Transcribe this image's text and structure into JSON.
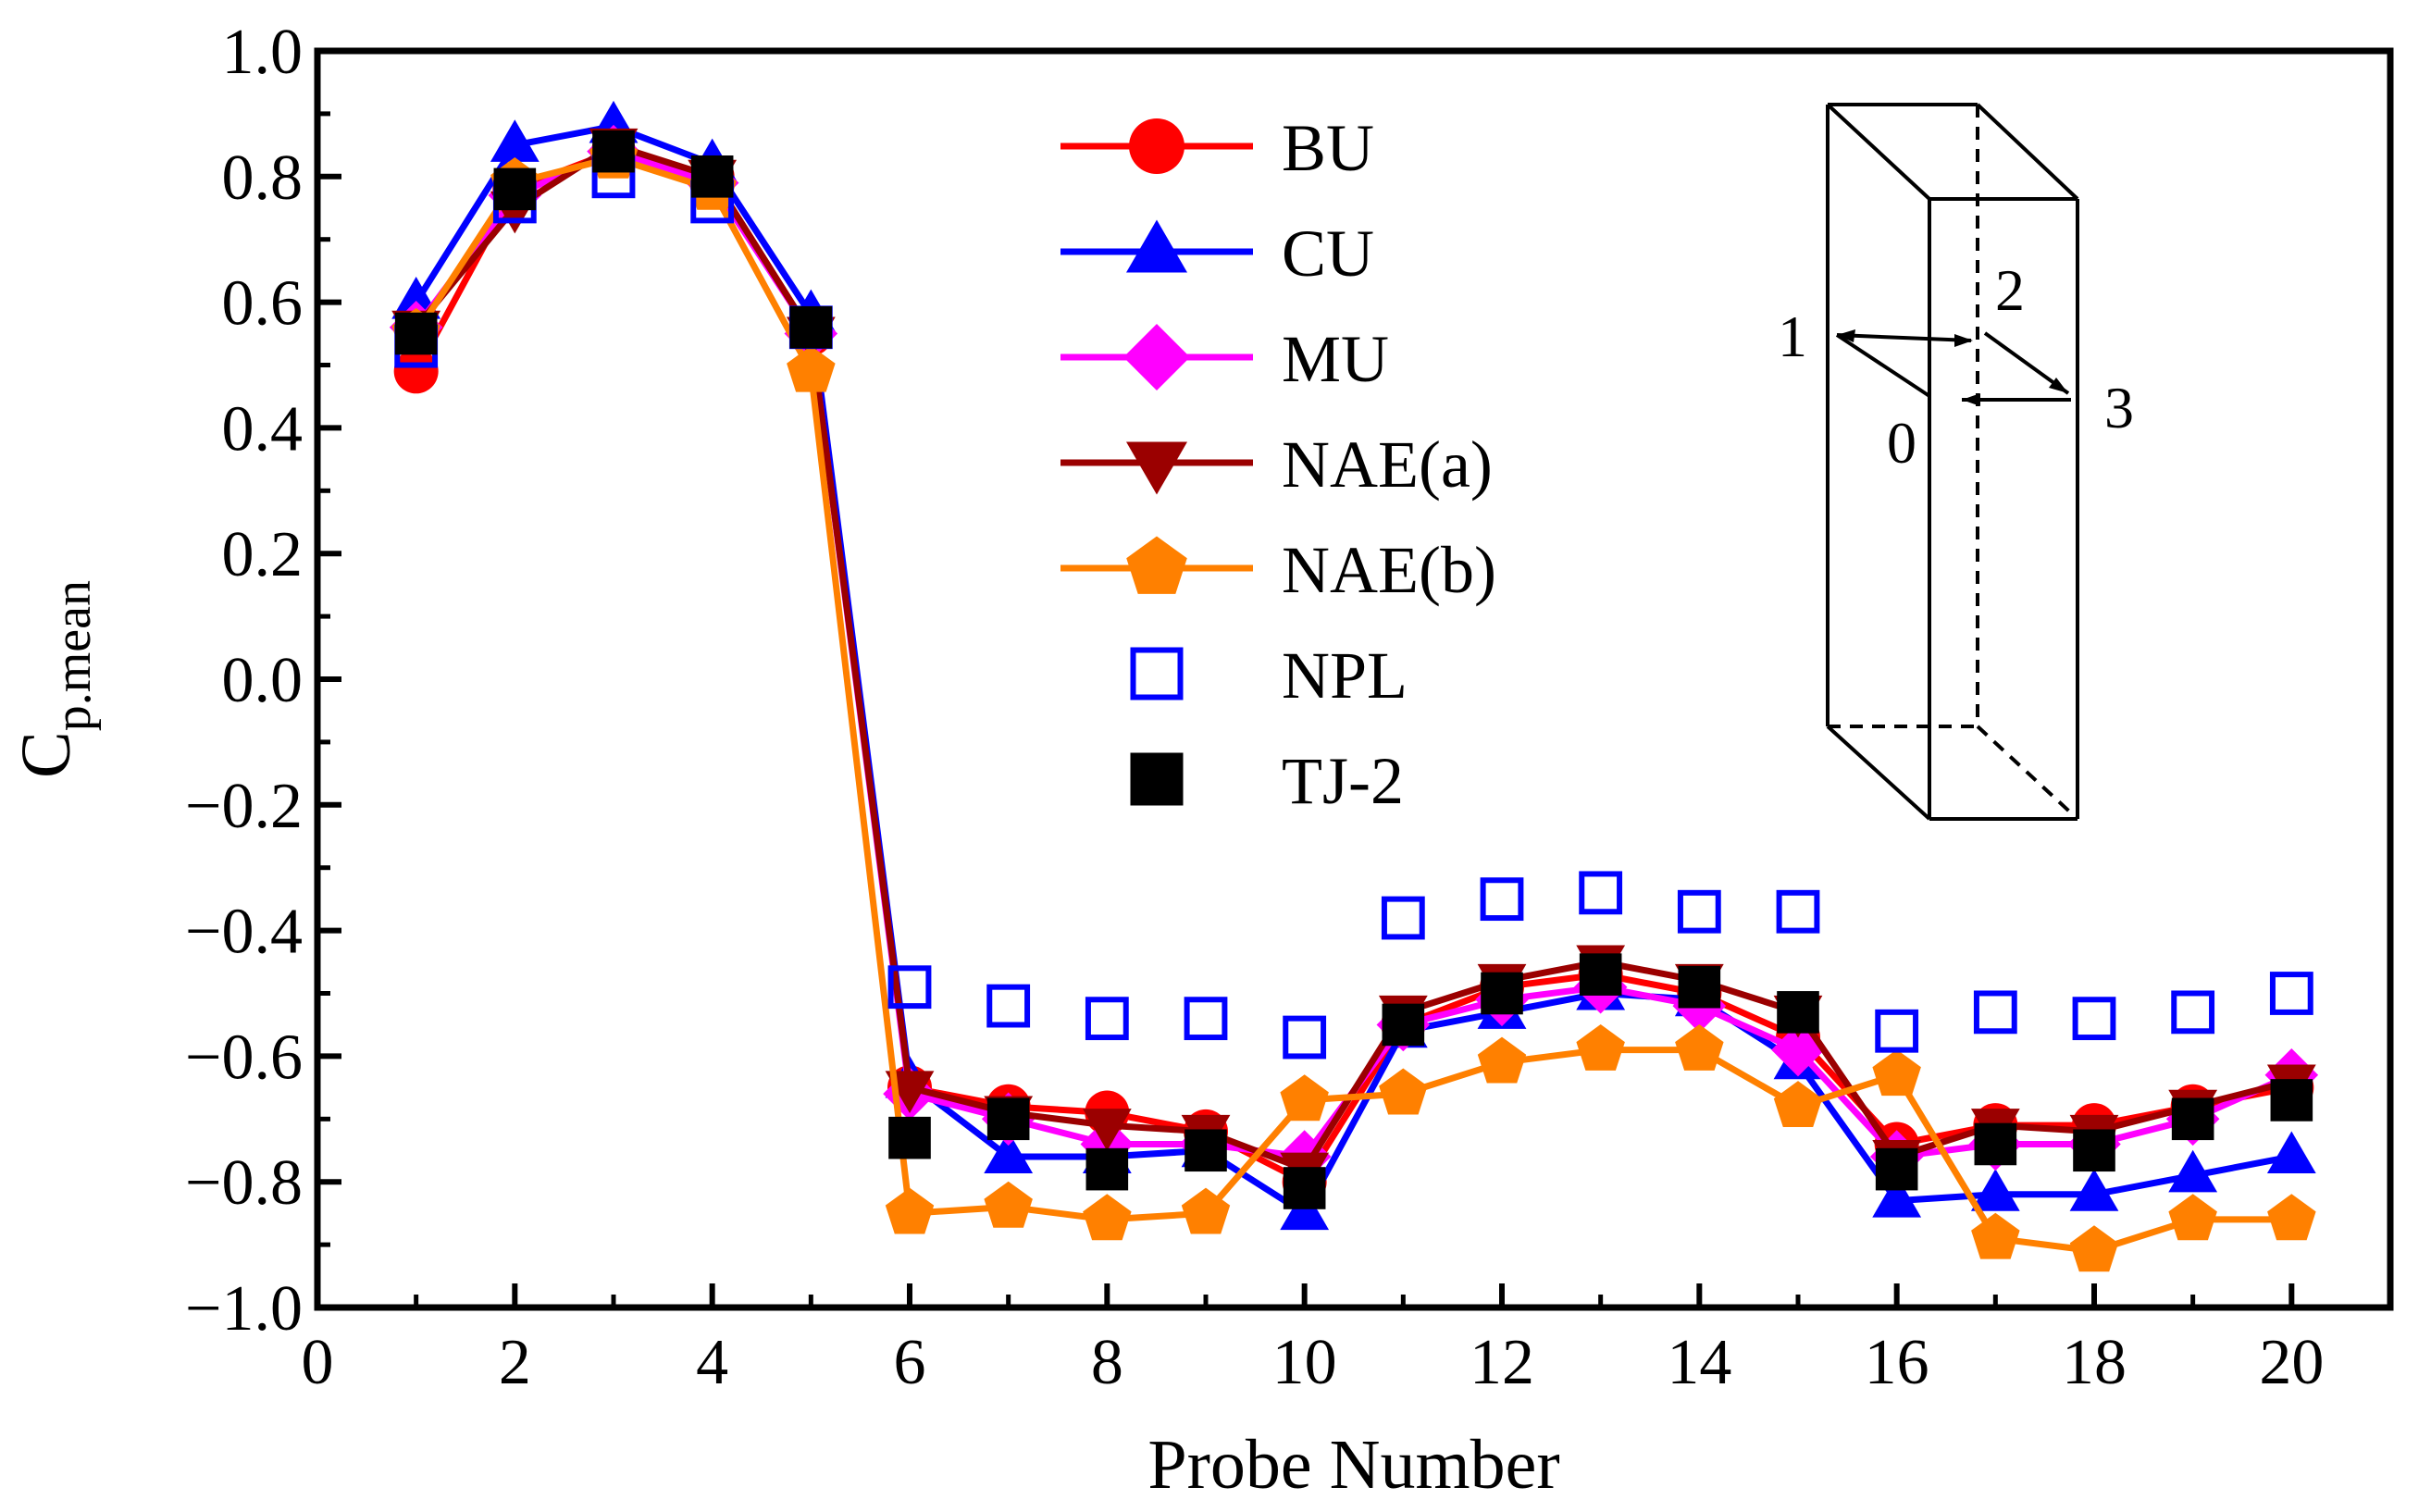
{
  "chart_data": {
    "type": "line",
    "xlabel": "Probe Number",
    "ylabel_main": "C",
    "ylabel_sub": "p.mean",
    "xlim": [
      0,
      21
    ],
    "ylim": [
      -1.0,
      1.0
    ],
    "xticks": [
      0,
      2,
      4,
      6,
      8,
      10,
      12,
      14,
      16,
      18,
      20
    ],
    "xtick_labels": [
      "0",
      "2",
      "4",
      "6",
      "8",
      "10",
      "12",
      "14",
      "16",
      "18",
      "20"
    ],
    "yticks": [
      1.0,
      0.8,
      0.6,
      0.4,
      0.2,
      0.0,
      -0.2,
      -0.4,
      -0.6,
      -0.8,
      -1.0
    ],
    "ytick_labels": [
      "1.0",
      "0.8",
      "0.6",
      "0.4",
      "0.2",
      "0.0",
      "−0.2",
      "−0.4",
      "−0.6",
      "−0.8",
      "−1.0"
    ],
    "x": [
      1,
      2,
      3,
      4,
      5,
      6,
      7,
      8,
      9,
      10,
      11,
      12,
      13,
      14,
      15,
      16,
      17,
      18,
      19,
      20
    ],
    "legend_position": "top-center",
    "series": [
      {
        "name": "BU",
        "color": "#ff0000",
        "marker": "circle",
        "line": true,
        "values": [
          0.49,
          0.78,
          0.84,
          0.8,
          0.55,
          -0.65,
          -0.68,
          -0.69,
          -0.72,
          -0.8,
          -0.55,
          -0.49,
          -0.47,
          -0.5,
          -0.57,
          -0.74,
          -0.71,
          -0.71,
          -0.68,
          -0.65
        ]
      },
      {
        "name": "CU",
        "color": "#0000ff",
        "marker": "triangle-up",
        "line": true,
        "values": [
          0.6,
          0.85,
          0.88,
          0.82,
          0.58,
          -0.64,
          -0.76,
          -0.76,
          -0.75,
          -0.85,
          -0.56,
          -0.53,
          -0.5,
          -0.51,
          -0.61,
          -0.83,
          -0.82,
          -0.82,
          -0.79,
          -0.76
        ]
      },
      {
        "name": "MU",
        "color": "#ff00ff",
        "marker": "diamond",
        "line": true,
        "values": [
          0.56,
          0.77,
          0.84,
          0.79,
          0.55,
          -0.66,
          -0.7,
          -0.74,
          -0.74,
          -0.76,
          -0.55,
          -0.51,
          -0.49,
          -0.52,
          -0.59,
          -0.76,
          -0.74,
          -0.74,
          -0.7,
          -0.63
        ]
      },
      {
        "name": "NAE(a)",
        "color": "#9b0000",
        "marker": "triangle-down",
        "line": true,
        "values": [
          0.56,
          0.75,
          0.85,
          0.8,
          0.55,
          -0.65,
          -0.69,
          -0.71,
          -0.72,
          -0.78,
          -0.53,
          -0.48,
          -0.45,
          -0.48,
          -0.53,
          -0.76,
          -0.71,
          -0.72,
          -0.68,
          -0.64
        ]
      },
      {
        "name": "NAE(b)",
        "color": "#ff8000",
        "marker": "pentagon",
        "line": true,
        "values": [
          0.55,
          0.79,
          0.83,
          0.78,
          0.49,
          -0.85,
          -0.84,
          -0.86,
          -0.85,
          -0.67,
          -0.66,
          -0.61,
          -0.59,
          -0.59,
          -0.68,
          -0.63,
          -0.89,
          -0.91,
          -0.86,
          -0.86
        ]
      },
      {
        "name": "NPL",
        "color": "#0000ff",
        "marker": "open-square",
        "line": false,
        "values": [
          0.53,
          0.76,
          0.8,
          0.76,
          0.56,
          -0.49,
          -0.52,
          -0.54,
          -0.54,
          -0.57,
          -0.38,
          -0.35,
          -0.34,
          -0.37,
          -0.37,
          -0.56,
          -0.53,
          -0.54,
          -0.53,
          -0.5
        ]
      },
      {
        "name": "TJ-2",
        "color": "#000000",
        "marker": "square",
        "line": false,
        "values": [
          0.55,
          0.78,
          0.84,
          0.8,
          0.56,
          -0.73,
          -0.7,
          -0.78,
          -0.75,
          -0.81,
          -0.55,
          -0.5,
          -0.47,
          -0.49,
          -0.53,
          -0.78,
          -0.74,
          -0.75,
          -0.7,
          -0.67
        ]
      }
    ]
  },
  "inset": {
    "title": "building-prism-diagram",
    "labels": [
      "0",
      "1",
      "2",
      "3"
    ]
  }
}
